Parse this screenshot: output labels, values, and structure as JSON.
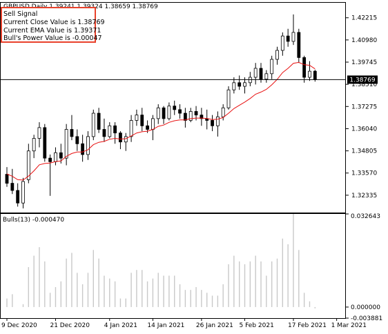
{
  "header": {
    "symbol": "GBPUSD",
    "timeframe": "Daily",
    "ohlc": "1.39241 1.39324 1.38659 1.38769",
    "title": "GBPUSD,Daily  1.39241 1.39324 1.38659 1.38769"
  },
  "comment_box": {
    "border_color": "#e8402a",
    "lines": [
      "Sell Signal",
      "Current Close Value is 1.38769",
      "Current EMA Value is 1.39371",
      "Bull's Power Value is -0.00047"
    ]
  },
  "colors": {
    "bull_candle": "#ffffff",
    "bear_candle": "#000000",
    "ema_line": "#e81010",
    "bulls_power_bars": "#c8c8c8",
    "grid_frame": "#000000"
  },
  "chart_data": [
    {
      "type": "candlestick",
      "title": "GBPUSD,Daily  1.39241 1.39324 1.38659 1.38769",
      "ylim": [
        1.3137,
        1.4305
      ],
      "y_ticks": [
        "1.42215",
        "1.40980",
        "1.39745",
        "1.38510",
        "1.37275",
        "1.36040",
        "1.34805",
        "1.33570",
        "1.32335"
      ],
      "price_line": {
        "value": 1.38769,
        "label": "1.38769"
      },
      "series": [
        {
          "name": "ohlc",
          "values": [
            [
              1.335,
              1.339,
              1.328,
              1.33
            ],
            [
              1.33,
              1.338,
              1.324,
              1.326
            ],
            [
              1.326,
              1.33,
              1.317,
              1.319
            ],
            [
              1.319,
              1.333,
              1.316,
              1.331
            ],
            [
              1.332,
              1.352,
              1.33,
              1.348
            ],
            [
              1.348,
              1.357,
              1.344,
              1.355
            ],
            [
              1.355,
              1.364,
              1.35,
              1.361
            ],
            [
              1.361,
              1.363,
              1.342,
              1.344
            ],
            [
              1.344,
              1.346,
              1.323,
              1.342
            ],
            [
              1.342,
              1.35,
              1.34,
              1.347
            ],
            [
              1.347,
              1.352,
              1.341,
              1.344
            ],
            [
              1.344,
              1.363,
              1.34,
              1.36
            ],
            [
              1.36,
              1.368,
              1.354,
              1.356
            ],
            [
              1.356,
              1.36,
              1.348,
              1.352
            ],
            [
              1.352,
              1.357,
              1.342,
              1.346
            ],
            [
              1.346,
              1.359,
              1.343,
              1.356
            ],
            [
              1.356,
              1.371,
              1.354,
              1.369
            ],
            [
              1.369,
              1.372,
              1.358,
              1.36
            ],
            [
              1.36,
              1.366,
              1.353,
              1.356
            ],
            [
              1.356,
              1.364,
              1.355,
              1.362
            ],
            [
              1.362,
              1.364,
              1.352,
              1.358
            ],
            [
              1.358,
              1.359,
              1.349,
              1.353
            ],
            [
              1.353,
              1.358,
              1.348,
              1.356
            ],
            [
              1.356,
              1.368,
              1.353,
              1.365
            ],
            [
              1.365,
              1.371,
              1.362,
              1.368
            ],
            [
              1.368,
              1.372,
              1.359,
              1.362
            ],
            [
              1.362,
              1.365,
              1.358,
              1.36
            ],
            [
              1.36,
              1.368,
              1.354,
              1.366
            ],
            [
              1.366,
              1.374,
              1.363,
              1.372
            ],
            [
              1.372,
              1.373,
              1.363,
              1.366
            ],
            [
              1.366,
              1.375,
              1.365,
              1.373
            ],
            [
              1.373,
              1.376,
              1.368,
              1.371
            ],
            [
              1.371,
              1.374,
              1.366,
              1.369
            ],
            [
              1.369,
              1.372,
              1.361,
              1.365
            ],
            [
              1.365,
              1.372,
              1.364,
              1.37
            ],
            [
              1.37,
              1.373,
              1.365,
              1.368
            ],
            [
              1.368,
              1.372,
              1.362,
              1.366
            ],
            [
              1.366,
              1.371,
              1.36,
              1.365
            ],
            [
              1.365,
              1.368,
              1.359,
              1.362
            ],
            [
              1.362,
              1.37,
              1.356,
              1.367
            ],
            [
              1.367,
              1.374,
              1.365,
              1.372
            ],
            [
              1.372,
              1.384,
              1.371,
              1.382
            ],
            [
              1.382,
              1.389,
              1.38,
              1.386
            ],
            [
              1.386,
              1.39,
              1.382,
              1.384
            ],
            [
              1.384,
              1.389,
              1.38,
              1.386
            ],
            [
              1.386,
              1.392,
              1.384,
              1.389
            ],
            [
              1.389,
              1.397,
              1.385,
              1.394
            ],
            [
              1.394,
              1.397,
              1.386,
              1.388
            ],
            [
              1.388,
              1.393,
              1.386,
              1.391
            ],
            [
              1.391,
              1.401,
              1.388,
              1.399
            ],
            [
              1.399,
              1.406,
              1.396,
              1.404
            ],
            [
              1.404,
              1.414,
              1.401,
              1.412
            ],
            [
              1.412,
              1.416,
              1.406,
              1.409
            ],
            [
              1.409,
              1.424,
              1.407,
              1.414
            ],
            [
              1.414,
              1.416,
              1.397,
              1.4
            ],
            [
              1.4,
              1.401,
              1.386,
              1.389
            ],
            [
              1.389,
              1.398,
              1.387,
              1.3924
            ],
            [
              1.39241,
              1.39324,
              1.38659,
              1.38769
            ]
          ]
        },
        {
          "name": "ema",
          "values": [
            1.3352,
            1.3339,
            1.332,
            1.3318,
            1.334,
            1.3369,
            1.3403,
            1.341,
            1.3413,
            1.3421,
            1.3424,
            1.345,
            1.3466,
            1.3474,
            1.3474,
            1.3487,
            1.3515,
            1.3528,
            1.3533,
            1.3545,
            1.355,
            1.3546,
            1.3548,
            1.3563,
            1.358,
            1.3587,
            1.359,
            1.36,
            1.3617,
            1.3624,
            1.3639,
            1.3648,
            1.3653,
            1.3653,
            1.366,
            1.3663,
            1.3663,
            1.3661,
            1.3655,
            1.3657,
            1.3666,
            1.369,
            1.3716,
            1.3734,
            1.3752,
            1.3772,
            1.3796,
            1.3808,
            1.3823,
            1.3848,
            1.3878,
            1.3916,
            1.394,
            1.3968,
            1.3973,
            1.396,
            1.3957,
            1.39371
          ]
        }
      ]
    },
    {
      "type": "bar",
      "title": "Bulls(13) -0.000470",
      "name": "Bulls(13)",
      "ylim": [
        -0.003881,
        0.032643
      ],
      "y_ticks": [
        "0.032643",
        "0.000000",
        "-0.003881"
      ],
      "values": [
        0.003,
        0.0045,
        0.0,
        0.001,
        0.014,
        0.018,
        0.021,
        0.016,
        0.005,
        0.007,
        0.009,
        0.017,
        0.019,
        0.012,
        0.008,
        0.012,
        0.02,
        0.017,
        0.011,
        0.01,
        0.009,
        0.003,
        0.003,
        0.012,
        0.013,
        0.013,
        0.009,
        0.01,
        0.012,
        0.011,
        0.011,
        0.011,
        0.008,
        0.006,
        0.006,
        0.007,
        0.006,
        0.005,
        0.004,
        0.004,
        0.008,
        0.015,
        0.018,
        0.016,
        0.015,
        0.016,
        0.018,
        0.016,
        0.011,
        0.016,
        0.017,
        0.024,
        0.022,
        0.032643,
        0.02,
        0.005,
        0.002,
        -0.00047
      ]
    }
  ],
  "x_axis": {
    "labels": [
      "9 Dec 2020",
      "21 Dec 2020",
      "4 Jan 2021",
      "14 Jan 2021",
      "26 Jan 2021",
      "5 Feb 2021",
      "17 Feb 2021",
      "1 Mar 2021"
    ],
    "label_bar_index": [
      0,
      9,
      19,
      27,
      36,
      44,
      53,
      61
    ]
  },
  "bulls_indicator_label": "Bulls(13) -0.000470"
}
